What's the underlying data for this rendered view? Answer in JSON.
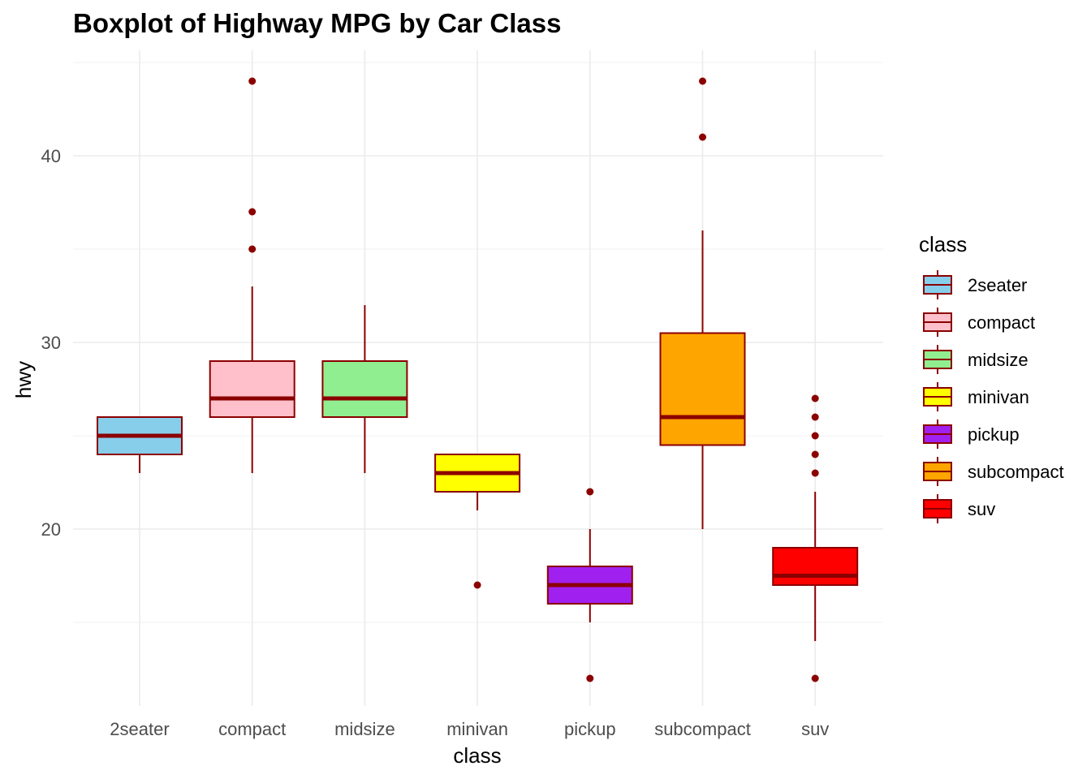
{
  "chart_data": {
    "type": "boxplot",
    "title": "Boxplot of Highway MPG by Car Class",
    "xlabel": "class",
    "ylabel": "hwy",
    "ylim": [
      11,
      46
    ],
    "yticks": [
      20,
      30,
      40
    ],
    "grid": true,
    "legend_title": "class",
    "legend_position": "right",
    "outline_color": "#8B0000",
    "categories": [
      "2seater",
      "compact",
      "midsize",
      "minivan",
      "pickup",
      "subcompact",
      "suv"
    ],
    "boxes": [
      {
        "class": "2seater",
        "fill": "#87CEEB",
        "min": 23,
        "q1": 24,
        "median": 25,
        "q3": 26,
        "max": 26,
        "outliers": []
      },
      {
        "class": "compact",
        "fill": "#FFC0CB",
        "min": 23,
        "q1": 26,
        "median": 27,
        "q3": 29,
        "max": 33,
        "outliers": [
          35,
          37,
          44
        ]
      },
      {
        "class": "midsize",
        "fill": "#90EE90",
        "min": 23,
        "q1": 26,
        "median": 27,
        "q3": 29,
        "max": 32,
        "outliers": []
      },
      {
        "class": "minivan",
        "fill": "#FFFF00",
        "min": 21,
        "q1": 22,
        "median": 23,
        "q3": 24,
        "max": 24,
        "outliers": [
          17
        ]
      },
      {
        "class": "pickup",
        "fill": "#A020F0",
        "min": 15,
        "q1": 16,
        "median": 17,
        "q3": 18,
        "max": 20,
        "outliers": [
          12,
          22
        ]
      },
      {
        "class": "subcompact",
        "fill": "#FFA500",
        "min": 20,
        "q1": 24.5,
        "median": 26,
        "q3": 30.5,
        "max": 36,
        "outliers": [
          41,
          44
        ]
      },
      {
        "class": "suv",
        "fill": "#FF0000",
        "min": 14,
        "q1": 17,
        "median": 17.5,
        "q3": 19,
        "max": 22,
        "outliers": [
          12,
          23,
          24,
          25,
          26,
          27
        ]
      }
    ]
  }
}
